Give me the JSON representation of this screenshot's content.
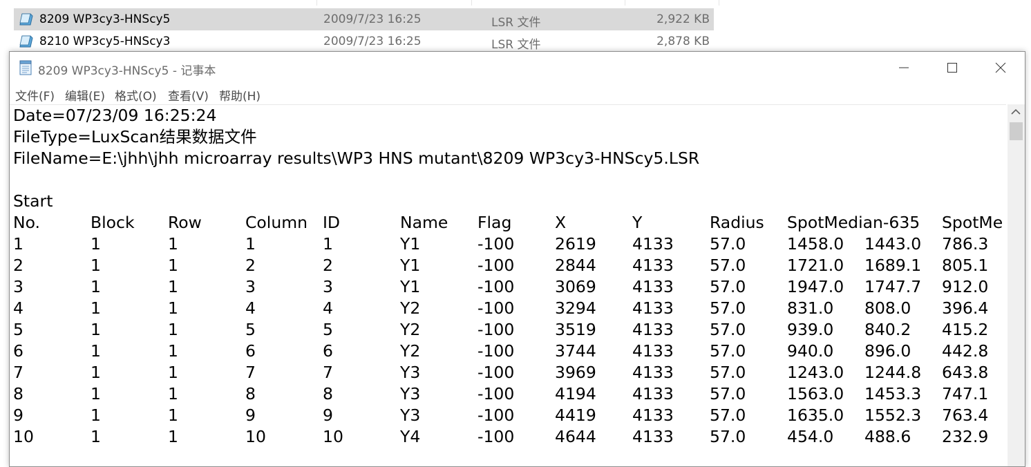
{
  "explorer": {
    "files": [
      {
        "name": "8209 WP3cy3-HNScy5",
        "date": "2009/7/23 16:25",
        "type": "LSR 文件",
        "size": "2,922 KB",
        "selected": true
      },
      {
        "name": "8210 WP3cy5-HNScy3",
        "date": "2009/7/23 16:25",
        "type": "LSR 文件",
        "size": "2,878 KB",
        "selected": false
      }
    ]
  },
  "notepad": {
    "title": "8209 WP3cy3-HNScy5 - 记事本",
    "icon": "notepad-icon",
    "window_buttons": [
      "minimize-icon",
      "maximize-icon",
      "close-icon"
    ],
    "menu": [
      "文件(F)",
      "编辑(E)",
      "格式(O)",
      "查看(V)",
      "帮助(H)"
    ],
    "header_lines": [
      "Date=07/23/09 16:25:24",
      "FileType=LuxScan结果数据文件",
      "FileName=E:\\jhh\\jhh microarray results\\WP3 HNS mutant\\8209 WP3cy3-HNScy5.LSR",
      "",
      "Start"
    ],
    "table": {
      "columns": [
        "No.",
        "Block",
        "Row",
        "Column",
        "ID",
        "Name",
        "Flag",
        "X",
        "Y",
        "Radius",
        "SpotMedian-635",
        "",
        "SpotMe"
      ],
      "rows": [
        [
          "1",
          "1",
          "1",
          "1",
          "1",
          "Y1",
          "-100",
          "2619",
          "4133",
          "57.0",
          "1458.0",
          "1443.0",
          "786.3"
        ],
        [
          "2",
          "1",
          "1",
          "2",
          "2",
          "Y1",
          "-100",
          "2844",
          "4133",
          "57.0",
          "1721.0",
          "1689.1",
          "805.1"
        ],
        [
          "3",
          "1",
          "1",
          "3",
          "3",
          "Y1",
          "-100",
          "3069",
          "4133",
          "57.0",
          "1947.0",
          "1747.7",
          "912.0"
        ],
        [
          "4",
          "1",
          "1",
          "4",
          "4",
          "Y2",
          "-100",
          "3294",
          "4133",
          "57.0",
          "831.0",
          "808.0",
          "396.4"
        ],
        [
          "5",
          "1",
          "1",
          "5",
          "5",
          "Y2",
          "-100",
          "3519",
          "4133",
          "57.0",
          "939.0",
          "840.2",
          "415.2"
        ],
        [
          "6",
          "1",
          "1",
          "6",
          "6",
          "Y2",
          "-100",
          "3744",
          "4133",
          "57.0",
          "940.0",
          "896.0",
          "442.8"
        ],
        [
          "7",
          "1",
          "1",
          "7",
          "7",
          "Y3",
          "-100",
          "3969",
          "4133",
          "57.0",
          "1243.0",
          "1244.8",
          "643.8"
        ],
        [
          "8",
          "1",
          "1",
          "8",
          "8",
          "Y3",
          "-100",
          "4194",
          "4133",
          "57.0",
          "1563.0",
          "1453.3",
          "747.1"
        ],
        [
          "9",
          "1",
          "1",
          "9",
          "9",
          "Y3",
          "-100",
          "4419",
          "4133",
          "57.0",
          "1635.0",
          "1552.3",
          "763.4"
        ],
        [
          "10",
          "1",
          "1",
          "10",
          "10",
          "Y4",
          "-100",
          "4644",
          "4133",
          "57.0",
          "454.0",
          "488.6",
          "232.9"
        ]
      ]
    }
  }
}
